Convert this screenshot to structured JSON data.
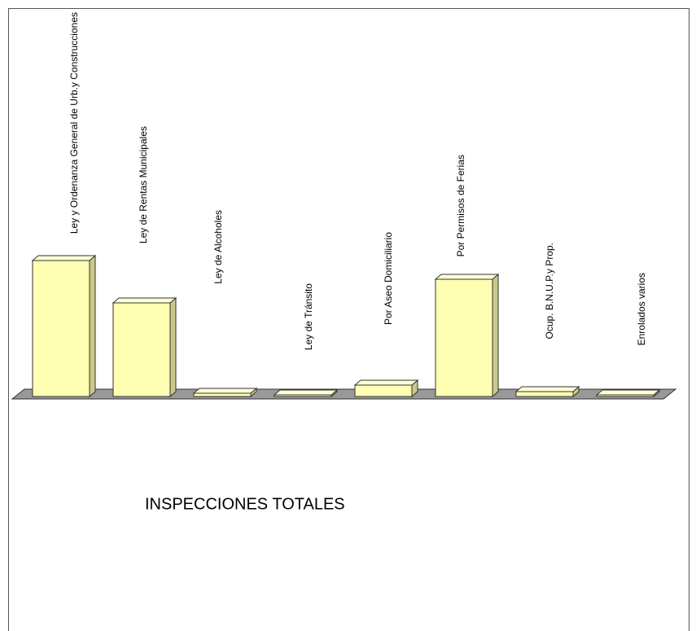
{
  "chart_data": {
    "type": "bar3d",
    "title": "INSPECCIONES TOTALES",
    "categories": [
      "Ley y Ordenanza General de Urb.y Construcciones",
      "Ley de Rentas Municipales",
      "Ley de Alcoholes",
      "Ley de Tránsito",
      "Por Aseo Domiciliario",
      "Por Permisos de Ferias",
      "Ocup. B.N.U.P.y Prop.",
      "Enrolados varios"
    ],
    "values": [
      167,
      115,
      4,
      2,
      14,
      144,
      6,
      2
    ],
    "color": "#ffffb3"
  }
}
